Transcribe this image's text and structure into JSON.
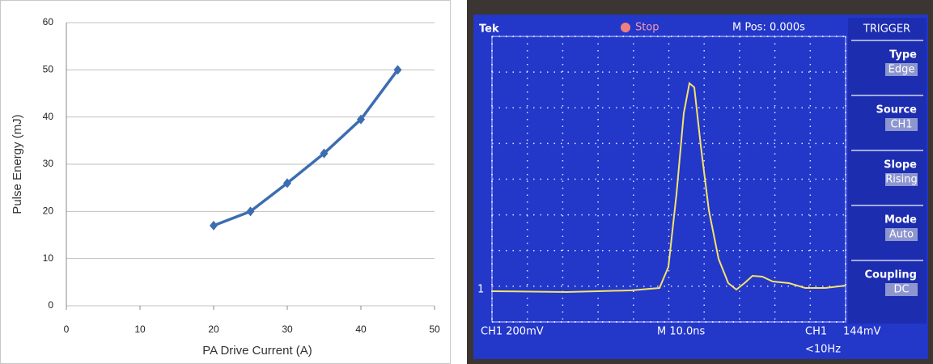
{
  "chart_data": [
    {
      "type": "line",
      "xlabel": "PA Drive Current (A)",
      "ylabel": "Pulse Energy (mJ)",
      "x": [
        20,
        25,
        30,
        35,
        40,
        45
      ],
      "values": [
        17,
        20,
        26,
        32.3,
        39.5,
        50
      ],
      "color": "#3c6db0",
      "xlim": [
        0,
        50
      ],
      "xticks": [
        0,
        10,
        20,
        30,
        40,
        50
      ],
      "ylim": [
        0,
        60
      ],
      "yticks": [
        0,
        10,
        20,
        30,
        40,
        50,
        60
      ],
      "grid": true
    },
    {
      "type": "scope",
      "brand": "Tek",
      "state": "Stop",
      "position": "M Pos: 0.000s",
      "menu_title": "TRIGGER",
      "menu": [
        {
          "label": "Type",
          "value": "Edge"
        },
        {
          "label": "Source",
          "value": "CH1"
        },
        {
          "label": "Slope",
          "value": "Rising"
        },
        {
          "label": "Mode",
          "value": "Auto"
        },
        {
          "label": "Coupling",
          "value": "DC"
        }
      ],
      "channel_marker": "1",
      "ch_scale": "CH1  200mV",
      "time_scale": "M 10.0ns",
      "trigger_channel": "CH1",
      "trigger_level": "144mV",
      "frequency": "<10Hz"
    }
  ]
}
